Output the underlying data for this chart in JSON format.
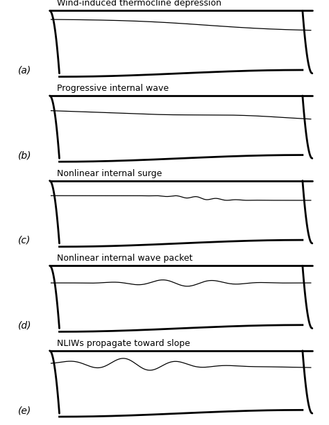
{
  "panels": [
    {
      "label": "(a)",
      "title": "Wind-induced thermocline depression",
      "thermocline_type": "depression"
    },
    {
      "label": "(b)",
      "title": "Progressive internal wave",
      "thermocline_type": "progressive"
    },
    {
      "label": "(c)",
      "title": "Nonlinear internal surge",
      "thermocline_type": "surge"
    },
    {
      "label": "(d)",
      "title": "Nonlinear internal wave packet",
      "thermocline_type": "packet"
    },
    {
      "label": "(e)",
      "title": "NLIWs propagate toward slope",
      "thermocline_type": "slope"
    }
  ],
  "bg_color": "#ffffff",
  "line_color": "#000000",
  "basin_lw": 2.0,
  "thermo_lw": 0.9,
  "label_fontsize": 10,
  "title_fontsize": 9.0
}
